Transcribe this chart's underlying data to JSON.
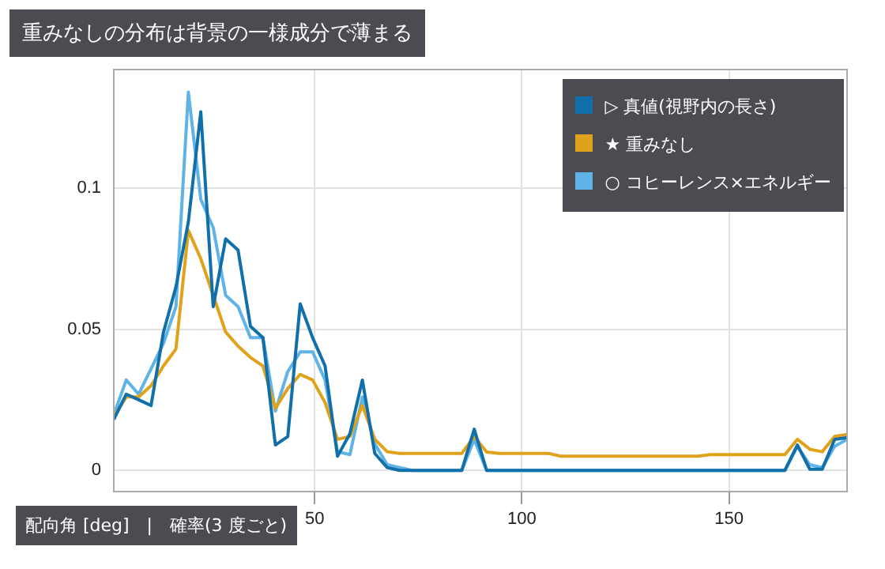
{
  "chart_data": {
    "type": "line",
    "title": "重みなしの分布は背景の一様成分で薄まる",
    "xlabel": "配向角 [deg]　|　確率(3 度ごと)",
    "x": [
      1.5,
      4.5,
      7.5,
      10.5,
      13.5,
      16.5,
      19.5,
      22.5,
      25.5,
      28.5,
      31.5,
      34.5,
      37.5,
      40.5,
      43.5,
      46.5,
      49.5,
      52.5,
      55.5,
      58.5,
      61.5,
      64.5,
      67.5,
      70.5,
      73.5,
      76.5,
      79.5,
      82.5,
      85.5,
      88.5,
      91.5,
      94.5,
      97.5,
      100.5,
      103.5,
      106.5,
      109.5,
      112.5,
      115.5,
      118.5,
      121.5,
      124.5,
      127.5,
      130.5,
      133.5,
      136.5,
      139.5,
      142.5,
      145.5,
      148.5,
      151.5,
      154.5,
      157.5,
      160.5,
      163.5,
      166.5,
      169.5,
      172.5,
      175.5,
      178.5
    ],
    "xlim": [
      1.5,
      178.5
    ],
    "xticks": [
      50,
      100,
      150
    ],
    "ylim": [
      -0.0075,
      0.142
    ],
    "yticks": [
      0,
      0.05,
      0.1
    ],
    "grid": true,
    "legend": "top right",
    "marker": "none",
    "line_style": "solid",
    "series": [
      {
        "name": "▷ 真値(視野内の長さ)",
        "color": "#1170aa",
        "values": [
          0.018,
          0.027,
          0.025,
          0.023,
          0.049,
          0.065,
          0.088,
          0.127,
          0.058,
          0.082,
          0.078,
          0.051,
          0.047,
          0.009,
          0.012,
          0.059,
          0.047,
          0.037,
          0.005,
          0.013,
          0.032,
          0.006,
          0.001,
          0,
          0,
          0,
          0,
          0,
          0,
          0.0146,
          0,
          0,
          0,
          0,
          0,
          0,
          0,
          0,
          0,
          0,
          0,
          0,
          0,
          0,
          0,
          0,
          0,
          0,
          0,
          0,
          0,
          0,
          0,
          0,
          0,
          0.009,
          0.0004,
          0.0004,
          0.011,
          0.0116
        ]
      },
      {
        "name": "★ 重みなし",
        "color": "#e0a11b",
        "values": [
          0.019,
          0.026,
          0.026,
          0.03,
          0.037,
          0.043,
          0.085,
          0.075,
          0.062,
          0.049,
          0.044,
          0.04,
          0.037,
          0.022,
          0.029,
          0.034,
          0.032,
          0.024,
          0.011,
          0.012,
          0.023,
          0.011,
          0.0066,
          0.006,
          0.006,
          0.006,
          0.006,
          0.006,
          0.006,
          0.012,
          0.0065,
          0.006,
          0.006,
          0.006,
          0.006,
          0.006,
          0.005,
          0.005,
          0.005,
          0.005,
          0.005,
          0.005,
          0.005,
          0.005,
          0.005,
          0.005,
          0.005,
          0.005,
          0.0056,
          0.0056,
          0.0056,
          0.0056,
          0.0056,
          0.0056,
          0.0056,
          0.011,
          0.0075,
          0.0066,
          0.012,
          0.0127
        ]
      },
      {
        "name": "○ コヒーレンス×エネルギー",
        "color": "#5fb3e6",
        "values": [
          0.0197,
          0.032,
          0.027,
          0.036,
          0.045,
          0.058,
          0.134,
          0.096,
          0.086,
          0.062,
          0.058,
          0.047,
          0.047,
          0.021,
          0.035,
          0.042,
          0.042,
          0.032,
          0.0066,
          0.0056,
          0.026,
          0.0094,
          0.002,
          0.001,
          0,
          0,
          0,
          0,
          0,
          0.011,
          0,
          0,
          0,
          0,
          0,
          0,
          0,
          0,
          0,
          0,
          0,
          0,
          0,
          0,
          0,
          0,
          0,
          0,
          0,
          0,
          0,
          0,
          0,
          0,
          0,
          0.0085,
          0.002,
          0.001,
          0.0085,
          0.011
        ]
      }
    ]
  }
}
